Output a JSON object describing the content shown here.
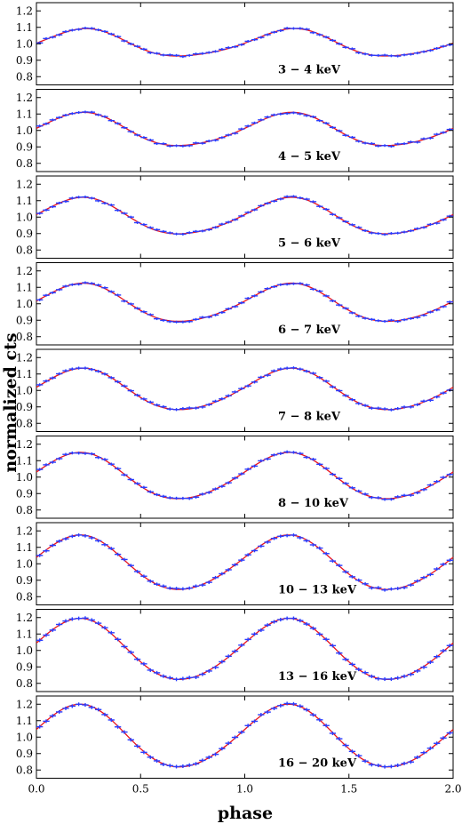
{
  "chart_data": {
    "type": "line",
    "xlabel": "phase",
    "ylabel": "normalized cts",
    "xlim": [
      0.0,
      2.0
    ],
    "ylim": [
      0.75,
      1.25
    ],
    "x_ticks": [
      "0.0",
      "0.5",
      "1.0",
      "1.5",
      "2.0"
    ],
    "x_tick_values": [
      0.0,
      0.5,
      1.0,
      1.5,
      2.0
    ],
    "y_ticks": [
      "0.8",
      "0.9",
      "1.0",
      "1.1",
      "1.2"
    ],
    "y_tick_values": [
      0.8,
      0.9,
      1.0,
      1.1,
      1.2
    ],
    "grid": false,
    "colors": {
      "data": "#2a3cff",
      "model": "#e8141e"
    },
    "panels": [
      {
        "band": "3 − 4 keV",
        "amplitude": 0.082,
        "peak_phase": 0.22,
        "error": 0.008
      },
      {
        "band": "4 − 5 keV",
        "amplitude": 0.1,
        "peak_phase": 0.21,
        "error": 0.008
      },
      {
        "band": "5 − 6 keV",
        "amplitude": 0.11,
        "peak_phase": 0.21,
        "error": 0.008
      },
      {
        "band": "6 − 7 keV",
        "amplitude": 0.115,
        "peak_phase": 0.21,
        "error": 0.008
      },
      {
        "band": "7 − 8 keV",
        "amplitude": 0.125,
        "peak_phase": 0.21,
        "error": 0.009
      },
      {
        "band": "8 − 10 keV",
        "amplitude": 0.14,
        "peak_phase": 0.2,
        "error": 0.009
      },
      {
        "band": "10 − 13 keV",
        "amplitude": 0.165,
        "peak_phase": 0.2,
        "error": 0.01
      },
      {
        "band": "13 − 16 keV",
        "amplitude": 0.185,
        "peak_phase": 0.2,
        "error": 0.011
      },
      {
        "band": "16 − 20 keV",
        "amplitude": 0.19,
        "peak_phase": 0.2,
        "error": 0.011
      }
    ]
  }
}
